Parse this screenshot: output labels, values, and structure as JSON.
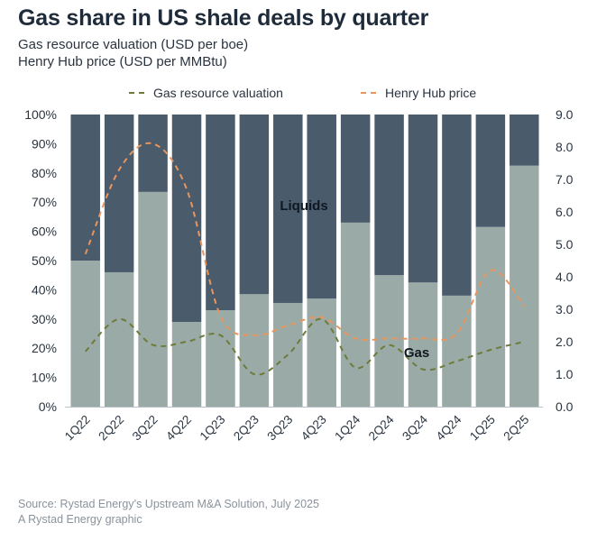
{
  "title": "Gas share in US shale deals by quarter",
  "subtitle_1": "Gas resource valuation (USD per boe)",
  "subtitle_2": "Henry Hub price (USD per MMBtu)",
  "source_1": "Source: Rystad Energy’s Upstream M&A Solution, July 2025",
  "source_2": "A Rystad Energy graphic",
  "colors": {
    "liquids": "#4a5b6c",
    "gas": "#9aaba7",
    "valuation_line": "#6e7a3a",
    "henry_hub_line": "#e8955e"
  },
  "chart_data": {
    "type": "bar",
    "stacked": true,
    "categories": [
      "1Q22",
      "2Q22",
      "3Q22",
      "4Q22",
      "1Q23",
      "2Q23",
      "3Q23",
      "4Q23",
      "1Q24",
      "2Q24",
      "3Q24",
      "4Q24",
      "1Q25",
      "2Q25"
    ],
    "series": [
      {
        "name": "Gas",
        "values": [
          50,
          46,
          73.5,
          29,
          33,
          38.5,
          35.5,
          37,
          63,
          45,
          42.5,
          38,
          61.5,
          82.5
        ]
      },
      {
        "name": "Liquids",
        "values": [
          50,
          54,
          26.5,
          71,
          67,
          61.5,
          64.5,
          63,
          37,
          55,
          57.5,
          62,
          38.5,
          17.5
        ]
      }
    ],
    "lines": [
      {
        "name": "Gas resource valuation",
        "axis": "right",
        "style": "dashed",
        "values": [
          1.7,
          2.7,
          1.9,
          2.0,
          2.2,
          1.0,
          1.6,
          2.7,
          1.2,
          1.9,
          1.15,
          1.4,
          1.75,
          2.0
        ]
      },
      {
        "name": "Henry Hub price",
        "axis": "right",
        "style": "dashed",
        "values": [
          4.7,
          7.3,
          8.1,
          6.7,
          2.8,
          2.2,
          2.5,
          2.75,
          2.1,
          2.1,
          2.1,
          2.25,
          4.2,
          3.1
        ]
      }
    ],
    "annotations": {
      "liquids": "Liquids",
      "gas": "Gas"
    },
    "y_left": {
      "min": 0,
      "max": 100,
      "step": 10,
      "format": "percent"
    },
    "y_right": {
      "min": 0,
      "max": 9,
      "step": 1,
      "format": "decimal1"
    },
    "legend_position": "top",
    "grid": false
  }
}
